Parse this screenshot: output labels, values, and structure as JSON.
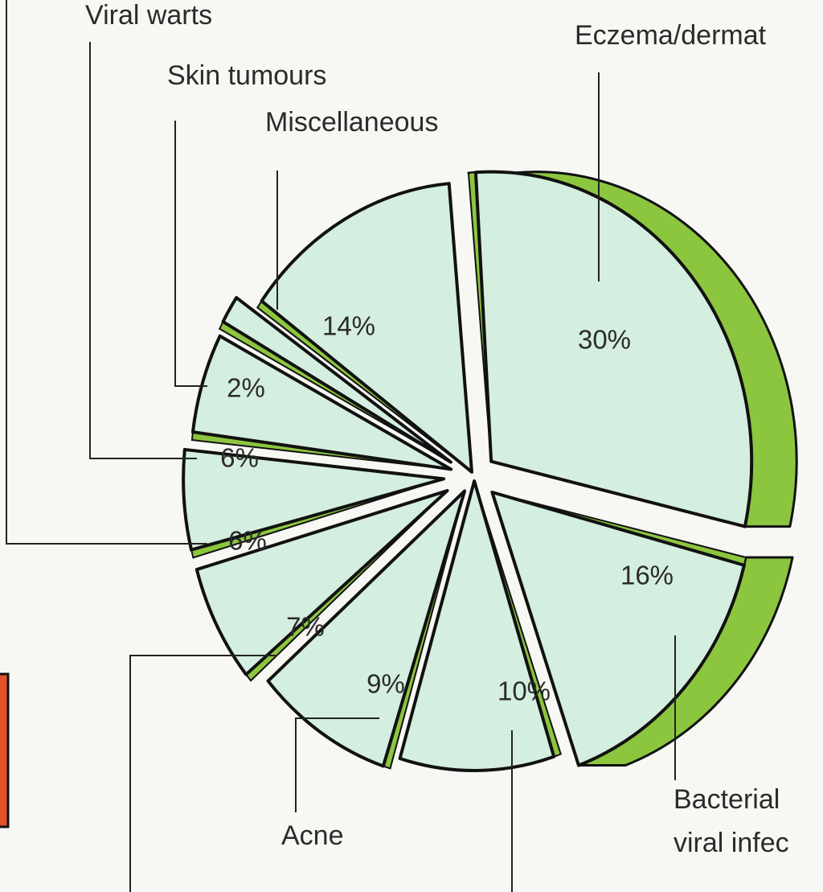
{
  "colors": {
    "face": "#d4eedf",
    "side": "#8cc63f",
    "stroke": "#111111",
    "accent": "#e8502a"
  },
  "chart_data": {
    "type": "pie",
    "slices": [
      {
        "label": "Eczema/dermat",
        "label2": "",
        "value": 30,
        "value_label": "30%"
      },
      {
        "label": "Bacterial",
        "label2": "viral infec",
        "value": 16,
        "value_label": "16%"
      },
      {
        "label": "",
        "label2": "",
        "value": 10,
        "value_label": "10%"
      },
      {
        "label": "Acne",
        "label2": "",
        "value": 9,
        "value_label": "9%"
      },
      {
        "label": "",
        "label2": "",
        "value": 7,
        "value_label": "7%"
      },
      {
        "label": "",
        "label2": "",
        "value": 6,
        "value_label": "6%"
      },
      {
        "label": "Viral warts",
        "label2": "",
        "value": 6,
        "value_label": "6%"
      },
      {
        "label": "Skin tumours",
        "label2": "",
        "value": 2,
        "value_label": "2%"
      },
      {
        "label": "Miscellaneous",
        "label2": "",
        "value": 14,
        "value_label": "14%"
      }
    ]
  }
}
